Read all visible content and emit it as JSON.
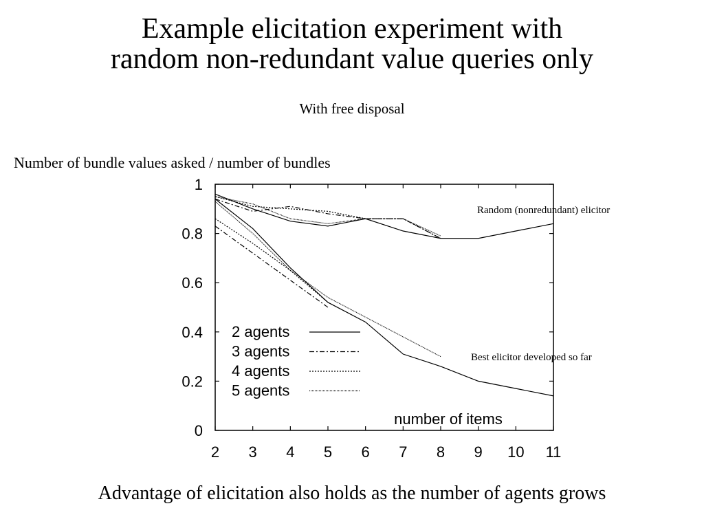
{
  "slide": {
    "title_line1": "Example elicitation experiment with",
    "title_line2": "random non-redundant value queries only",
    "subtitle": "With free disposal",
    "footer": "Advantage of elicitation also holds as the number of agents grows"
  },
  "chart_data": {
    "type": "line",
    "ylabel": "Number of bundle values asked / number of bundles",
    "xlabel": "number of items",
    "xlim": [
      2,
      11
    ],
    "ylim": [
      0,
      1
    ],
    "x_ticks": [
      "2",
      "3",
      "4",
      "5",
      "6",
      "7",
      "8",
      "9",
      "10",
      "11"
    ],
    "y_ticks": [
      "0",
      "0.2",
      "0.4",
      "0.6",
      "0.8",
      "1"
    ],
    "legend_position": "lower-left",
    "grid": false,
    "annotations": [
      "Random (nonredundant) elicitor",
      "Best elicitor developed so far"
    ],
    "series": [
      {
        "name": "2 agents",
        "style": "solid",
        "group": "random",
        "x": [
          2,
          3,
          4,
          5,
          6,
          7,
          8,
          9,
          10,
          11
        ],
        "values": [
          0.96,
          0.9,
          0.85,
          0.83,
          0.86,
          0.81,
          0.78,
          0.78,
          0.81,
          0.84
        ]
      },
      {
        "name": "3 agents",
        "style": "dashdot",
        "group": "random",
        "x": [
          2,
          3,
          4,
          5,
          6,
          7,
          8
        ],
        "values": [
          0.94,
          0.89,
          0.91,
          0.88,
          0.86,
          0.86,
          0.78
        ]
      },
      {
        "name": "4 agents",
        "style": "dotted",
        "group": "random",
        "x": [
          2,
          3,
          4,
          5,
          6,
          7,
          8
        ],
        "values": [
          0.95,
          0.91,
          0.9,
          0.89,
          0.86,
          0.86,
          0.78
        ]
      },
      {
        "name": "5 agents",
        "style": "densedot",
        "group": "random",
        "x": [
          2,
          3,
          4,
          5,
          6,
          7,
          8
        ],
        "values": [
          0.95,
          0.92,
          0.86,
          0.84,
          0.86,
          0.86,
          0.79
        ]
      },
      {
        "name": "2 agents",
        "style": "solid",
        "group": "best",
        "x": [
          2,
          3,
          4,
          5,
          6,
          7,
          8,
          9,
          10,
          11
        ],
        "values": [
          0.94,
          0.82,
          0.66,
          0.52,
          0.44,
          0.31,
          0.26,
          0.2,
          0.17,
          0.14
        ]
      },
      {
        "name": "3 agents",
        "style": "dashdot",
        "group": "best",
        "x": [
          2,
          3,
          4,
          5
        ],
        "values": [
          0.83,
          0.72,
          0.61,
          0.5
        ]
      },
      {
        "name": "4 agents",
        "style": "dotted",
        "group": "best",
        "x": [
          2,
          3,
          4,
          5
        ],
        "values": [
          0.86,
          0.76,
          0.65,
          0.52
        ]
      },
      {
        "name": "5 agents",
        "style": "densedot",
        "group": "best",
        "x": [
          2,
          3,
          4,
          5,
          6,
          7,
          8
        ],
        "values": [
          0.93,
          0.8,
          0.65,
          0.54,
          0.46,
          0.38,
          0.3
        ]
      }
    ],
    "legend": [
      {
        "label": "2 agents",
        "style": "solid"
      },
      {
        "label": "3 agents",
        "style": "dashdot"
      },
      {
        "label": "4 agents",
        "style": "dotted"
      },
      {
        "label": "5 agents",
        "style": "densedot"
      }
    ]
  }
}
